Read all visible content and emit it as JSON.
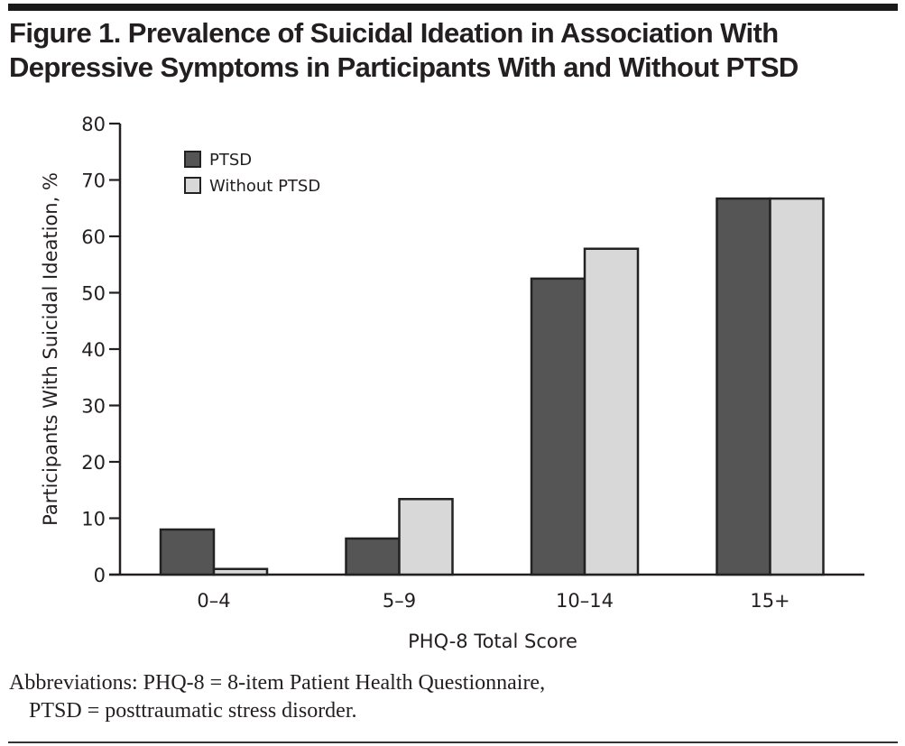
{
  "figure": {
    "title_line1": "Figure 1. Prevalence of Suicidal Ideation in Association With",
    "title_line2": "Depressive Symptoms in Participants With and Without PTSD",
    "footnote_line1": "Abbreviations: PHQ-8 = 8-item Patient Health Questionnaire,",
    "footnote_line2": "PTSD = posttraumatic stress disorder."
  },
  "chart_data": {
    "type": "bar",
    "title": "Figure 1. Prevalence of Suicidal Ideation in Association With Depressive Symptoms in Participants With and Without PTSD",
    "xlabel": "PHQ-8 Total Score",
    "ylabel": "Participants With Suicidal Ideation, %",
    "categories": [
      "0–4",
      "5–9",
      "10–14",
      "15+"
    ],
    "series": [
      {
        "name": "PTSD",
        "color": "#555555",
        "values": [
          8.0,
          6.4,
          52.5,
          66.7
        ]
      },
      {
        "name": "Without PTSD",
        "color": "#d8d8d8",
        "values": [
          1.0,
          13.4,
          57.8,
          66.7
        ]
      }
    ],
    "ylim": [
      0,
      80
    ],
    "yticks": [
      0,
      10,
      20,
      30,
      40,
      50,
      60,
      70,
      80
    ],
    "grid": false,
    "legend_position": "top-left",
    "bar_edge_color": "#222222"
  }
}
